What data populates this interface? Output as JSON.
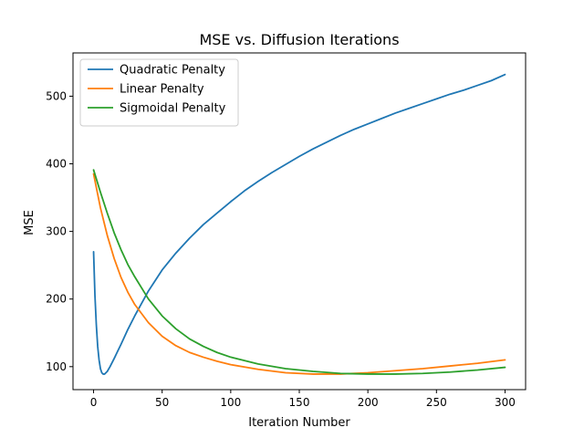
{
  "chart_data": {
    "type": "line",
    "title": "MSE vs. Diffusion Iterations",
    "xlabel": "Iteration Number",
    "ylabel": "MSE",
    "xlim": [
      -15,
      315
    ],
    "ylim": [
      66,
      564
    ],
    "xticks": [
      0,
      50,
      100,
      150,
      200,
      250,
      300
    ],
    "yticks": [
      100,
      200,
      300,
      400,
      500
    ],
    "grid": false,
    "legend_position": "top-left",
    "series": [
      {
        "name": "Quadratic Penalty",
        "color": "#1f77b4",
        "x": [
          0,
          1,
          2,
          3,
          4,
          5,
          6,
          7,
          8,
          10,
          12,
          15,
          20,
          25,
          30,
          40,
          50,
          60,
          70,
          80,
          90,
          100,
          110,
          120,
          130,
          140,
          150,
          160,
          170,
          180,
          190,
          200,
          210,
          220,
          230,
          240,
          250,
          260,
          270,
          280,
          290,
          300
        ],
        "y": [
          270,
          205,
          162,
          130,
          110,
          97,
          91,
          89,
          89,
          93,
          100,
          112,
          133,
          155,
          175,
          212,
          243,
          268,
          290,
          310,
          327,
          344,
          360,
          374,
          387,
          399,
          411,
          422,
          432,
          442,
          451,
          459,
          467,
          475,
          482,
          489,
          496,
          503,
          509,
          516,
          523,
          532
        ]
      },
      {
        "name": "Linear Penalty",
        "color": "#ff7f0e",
        "x": [
          0,
          5,
          10,
          15,
          20,
          25,
          30,
          40,
          50,
          60,
          70,
          80,
          90,
          100,
          120,
          140,
          160,
          180,
          200,
          220,
          240,
          260,
          280,
          300
        ],
        "y": [
          385,
          335,
          294,
          260,
          232,
          210,
          192,
          165,
          145,
          131,
          121,
          114,
          108,
          103,
          96,
          91,
          89,
          89,
          91,
          94,
          97,
          101,
          105,
          110
        ]
      },
      {
        "name": "Sigmoidal Penalty",
        "color": "#2ca02c",
        "x": [
          0,
          5,
          10,
          15,
          20,
          25,
          30,
          40,
          50,
          60,
          70,
          80,
          90,
          100,
          120,
          140,
          160,
          180,
          200,
          220,
          240,
          260,
          280,
          300
        ],
        "y": [
          391,
          358,
          327,
          298,
          273,
          251,
          233,
          200,
          175,
          156,
          141,
          130,
          121,
          114,
          104,
          97,
          93,
          90,
          89,
          89,
          90,
          92,
          95,
          99
        ]
      }
    ]
  }
}
